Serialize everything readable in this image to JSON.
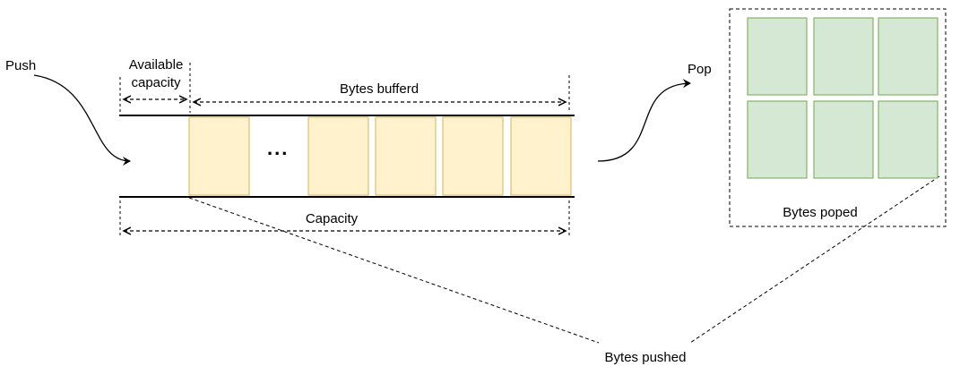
{
  "labels": {
    "push": "Push",
    "available_capacity_line1": "Available",
    "available_capacity_line2": "capacity",
    "bytes_buffered": "Bytes bufferd",
    "ellipsis": "...",
    "capacity": "Capacity",
    "pop": "Pop",
    "bytes_popped": "Bytes poped",
    "bytes_pushed": "Bytes pushed"
  },
  "colors": {
    "buffer_block_fill": "#fff2cc",
    "buffer_block_stroke": "#d6b656",
    "popped_block_fill": "#d5e8d4",
    "popped_block_stroke": "#82b366",
    "line": "#000000"
  },
  "buffer": {
    "visible_blocks_before_ellipsis": 1,
    "visible_blocks_after_ellipsis": 4
  },
  "popped_grid": {
    "rows": 2,
    "cols": 3
  }
}
